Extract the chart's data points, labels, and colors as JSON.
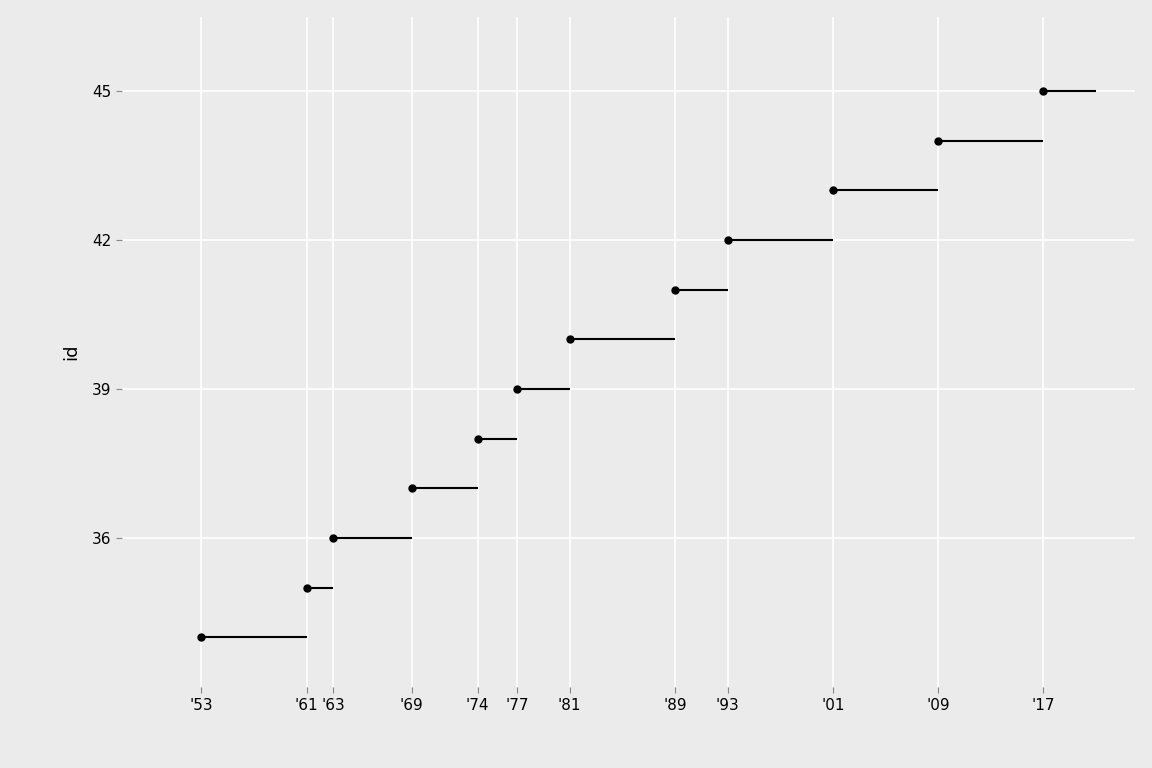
{
  "presidents": [
    {
      "id": 34,
      "start": 1953,
      "end": 1961
    },
    {
      "id": 35,
      "start": 1961,
      "end": 1963
    },
    {
      "id": 36,
      "start": 1963,
      "end": 1969
    },
    {
      "id": 37,
      "start": 1969,
      "end": 1974
    },
    {
      "id": 38,
      "start": 1974,
      "end": 1977
    },
    {
      "id": 39,
      "start": 1977,
      "end": 1981
    },
    {
      "id": 40,
      "start": 1981,
      "end": 1989
    },
    {
      "id": 41,
      "start": 1989,
      "end": 1993
    },
    {
      "id": 42,
      "start": 1993,
      "end": 2001
    },
    {
      "id": 43,
      "start": 2001,
      "end": 2009
    },
    {
      "id": 44,
      "start": 2009,
      "end": 2017
    },
    {
      "id": 45,
      "start": 2017,
      "end": 2021
    }
  ],
  "xticks": [
    1953,
    1961,
    1963,
    1969,
    1974,
    1977,
    1981,
    1989,
    1993,
    2001,
    2009,
    2017
  ],
  "yticks": [
    36,
    39,
    42,
    45
  ],
  "ylabel": "id",
  "bg_color": "#EBEBEB",
  "panel_bg": "#EBEBEB",
  "line_color": "black",
  "point_color": "black",
  "grid_color": "white",
  "point_size": 20,
  "line_width": 1.5,
  "xlim": [
    1947,
    2024
  ],
  "ylim": [
    33.0,
    46.5
  ],
  "tick_label_size": 11,
  "axis_label_size": 13
}
